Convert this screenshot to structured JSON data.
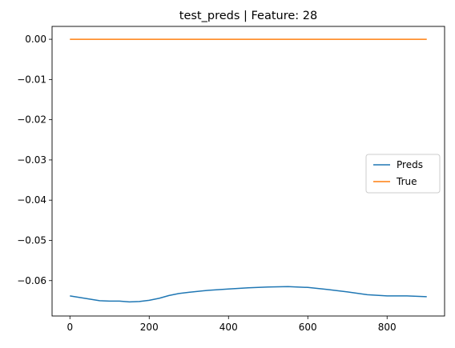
{
  "chart_data": {
    "type": "line",
    "title": "test_preds | Feature: 28",
    "xlabel": "",
    "ylabel": "",
    "xlim": [
      -45,
      945
    ],
    "ylim": [
      -0.0688,
      0.0032
    ],
    "x_ticks": [
      0,
      200,
      400,
      600,
      800
    ],
    "x_tick_labels": [
      "0",
      "200",
      "400",
      "600",
      "800"
    ],
    "y_ticks": [
      0.0,
      -0.01,
      -0.02,
      -0.03,
      -0.04,
      -0.05,
      -0.06
    ],
    "y_tick_labels": [
      "0.00",
      "−0.01",
      "−0.02",
      "−0.03",
      "−0.04",
      "−0.05",
      "−0.06"
    ],
    "grid": false,
    "legend_position": "center-right",
    "series": [
      {
        "name": "Preds",
        "color": "#1f77b4",
        "x": [
          0,
          25,
          50,
          75,
          100,
          125,
          150,
          175,
          200,
          225,
          250,
          275,
          300,
          350,
          400,
          450,
          500,
          550,
          600,
          650,
          700,
          750,
          800,
          850,
          900
        ],
        "y": [
          -0.0638,
          -0.0642,
          -0.0646,
          -0.065,
          -0.0651,
          -0.0651,
          -0.0653,
          -0.0652,
          -0.0649,
          -0.0644,
          -0.0637,
          -0.0632,
          -0.0629,
          -0.0624,
          -0.0621,
          -0.0618,
          -0.0616,
          -0.0615,
          -0.0617,
          -0.0622,
          -0.0628,
          -0.0635,
          -0.0638,
          -0.0638,
          -0.064
        ]
      },
      {
        "name": "True",
        "color": "#ff7f0e",
        "x": [
          0,
          900
        ],
        "y": [
          0.0,
          0.0
        ]
      }
    ]
  }
}
